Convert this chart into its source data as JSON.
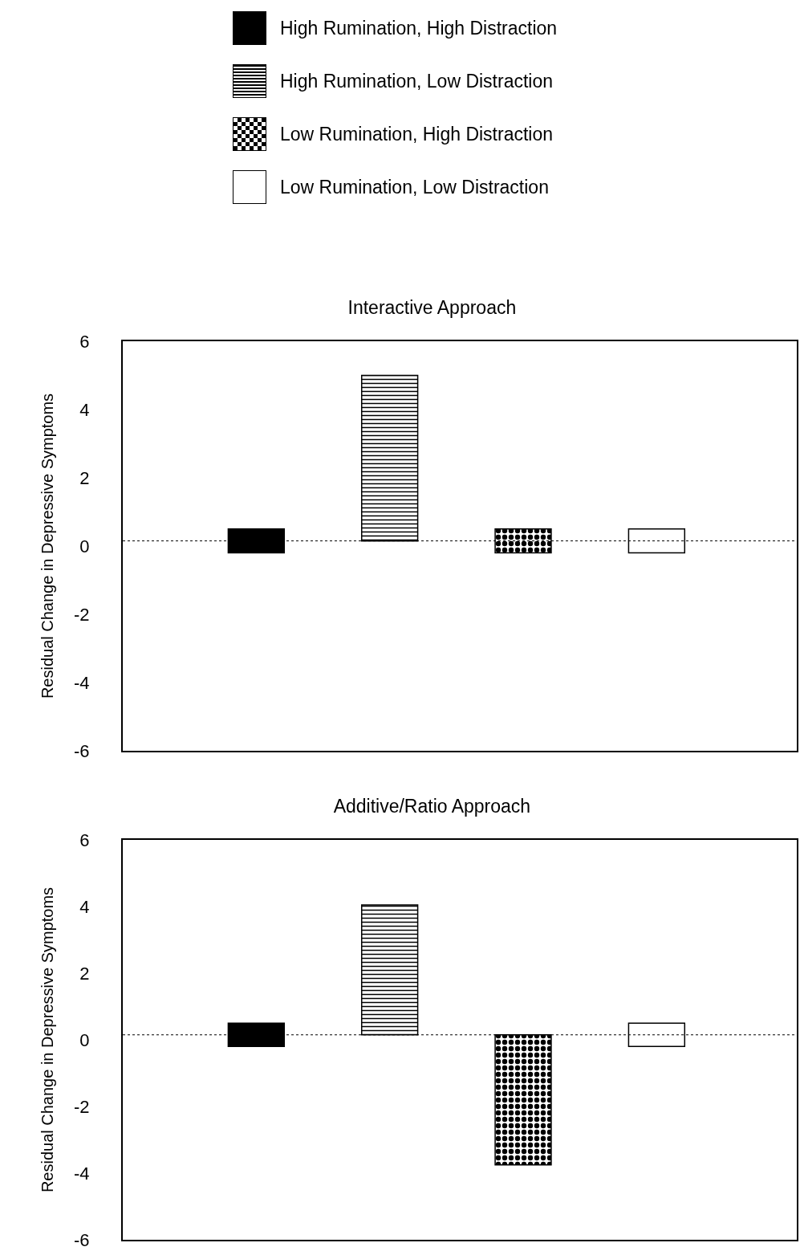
{
  "chart_data": [
    {
      "type": "bar",
      "title": "Interactive Approach",
      "ylabel": "Residual Change in Depressive Symptoms",
      "categories": [
        null,
        null,
        null,
        null
      ],
      "ylim": [
        -6,
        6
      ],
      "yticks": [
        -6,
        -4,
        -2,
        0,
        2,
        4,
        6
      ],
      "grid": false,
      "legend": "top",
      "ref_lines": [
        {
          "axis": "y",
          "value": 0.15,
          "line_style": "dotted",
          "color": "#000000"
        }
      ],
      "series": [
        {
          "name": "High Rumination, High Distraction",
          "color": "#000000",
          "values": [
            0.7,
            null,
            null,
            null
          ],
          "base": [
            -0.2,
            null,
            null,
            null
          ]
        },
        {
          "name": "High Rumination, Low Distraction",
          "color": "#000000",
          "values": [
            null,
            4.85,
            null,
            null
          ],
          "base": [
            null,
            0.15,
            null,
            null
          ]
        },
        {
          "name": "Low Rumination, High Distraction",
          "color": "#000000",
          "values": [
            null,
            null,
            0.7,
            null
          ],
          "base": [
            null,
            null,
            -0.2,
            null
          ]
        },
        {
          "name": "Low Rumination, Low Distraction",
          "color": "#ffffff",
          "values": [
            null,
            null,
            null,
            0.7
          ],
          "base": [
            null,
            null,
            null,
            -0.2
          ]
        }
      ]
    },
    {
      "type": "bar",
      "title": "Additive/Ratio Approach",
      "ylabel": "Residual Change in Depressive Symptoms",
      "categories": [
        null,
        null,
        null,
        null
      ],
      "ylim": [
        -6,
        6
      ],
      "yticks": [
        -6,
        -4,
        -2,
        0,
        2,
        4,
        6
      ],
      "grid": false,
      "legend": false,
      "ref_lines": [
        {
          "axis": "y",
          "value": 0.15,
          "line_style": "dotted",
          "color": "#000000"
        }
      ],
      "series": [
        {
          "color": "#000000",
          "values": [
            0.7,
            null,
            null,
            null
          ],
          "base": [
            -0.2,
            null,
            null,
            null
          ]
        },
        {
          "color": "#000000",
          "values": [
            null,
            3.9,
            null,
            null
          ],
          "base": [
            null,
            0.15,
            null,
            null
          ]
        },
        {
          "color": "#000000",
          "values": [
            null,
            null,
            -3.9,
            null
          ],
          "base": [
            null,
            null,
            0.15,
            null
          ]
        },
        {
          "color": "#ffffff",
          "values": [
            null,
            null,
            null,
            0.7
          ],
          "base": [
            null,
            null,
            null,
            -0.2
          ]
        }
      ]
    }
  ]
}
